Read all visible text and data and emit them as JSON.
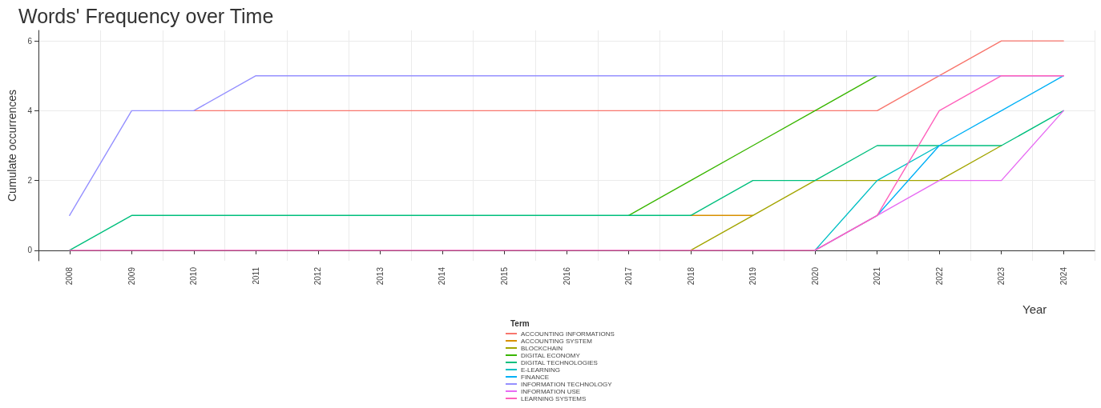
{
  "chart_data": {
    "type": "line",
    "title": "Words' Frequency over Time",
    "xlabel": "Year",
    "ylabel": "Cumulate occurrences",
    "legend_title": "Term",
    "categories": [
      "2008",
      "2009",
      "2010",
      "2011",
      "2012",
      "2013",
      "2014",
      "2015",
      "2016",
      "2017",
      "2018",
      "2019",
      "2020",
      "2021",
      "2022",
      "2023",
      "2024"
    ],
    "ylim": [
      -0.3,
      6.3
    ],
    "yticks": [
      0,
      2,
      4,
      6
    ],
    "grid": true,
    "legend": "bottom",
    "marker": "none",
    "line_style": "solid",
    "series": [
      {
        "name": "ACCOUNTING INFORMATIONS",
        "color": "#f8766d",
        "values": [
          null,
          null,
          4,
          4,
          4,
          4,
          4,
          4,
          4,
          4,
          4,
          4,
          4,
          4,
          5,
          6,
          6
        ]
      },
      {
        "name": "ACCOUNTING SYSTEM",
        "color": "#d89000",
        "values": [
          null,
          null,
          null,
          null,
          null,
          null,
          null,
          null,
          null,
          null,
          1,
          1,
          null,
          null,
          null,
          null,
          null
        ]
      },
      {
        "name": "BLOCKCHAIN",
        "color": "#a3a500",
        "values": [
          null,
          null,
          null,
          null,
          null,
          null,
          null,
          null,
          null,
          null,
          0,
          1,
          2,
          2,
          2,
          3,
          null
        ]
      },
      {
        "name": "DIGITAL ECONOMY",
        "color": "#39b600",
        "values": [
          null,
          null,
          null,
          null,
          null,
          null,
          null,
          null,
          null,
          1,
          2,
          3,
          4,
          5,
          null,
          null,
          null
        ]
      },
      {
        "name": "DIGITAL TECHNOLOGIES",
        "color": "#00bf7d",
        "values": [
          0,
          1,
          1,
          1,
          1,
          1,
          1,
          1,
          1,
          1,
          1,
          2,
          2,
          3,
          3,
          3,
          4
        ]
      },
      {
        "name": "E-LEARNING",
        "color": "#00bfc4",
        "values": [
          null,
          null,
          null,
          null,
          null,
          null,
          null,
          null,
          null,
          null,
          null,
          null,
          0,
          2,
          3,
          null,
          null
        ]
      },
      {
        "name": "FINANCE",
        "color": "#00b0f6",
        "values": [
          null,
          null,
          null,
          null,
          null,
          null,
          null,
          null,
          null,
          null,
          null,
          null,
          0,
          1,
          3,
          4,
          5
        ]
      },
      {
        "name": "INFORMATION TECHNOLOGY",
        "color": "#9590ff",
        "values": [
          1,
          4,
          4,
          5,
          5,
          5,
          5,
          5,
          5,
          5,
          5,
          5,
          5,
          5,
          5,
          5,
          5
        ]
      },
      {
        "name": "INFORMATION USE",
        "color": "#e76bf3",
        "values": [
          null,
          null,
          null,
          null,
          null,
          null,
          null,
          null,
          null,
          null,
          null,
          null,
          0,
          1,
          2,
          2,
          4
        ]
      },
      {
        "name": "LEARNING SYSTEMS",
        "color": "#ff62bc",
        "values": [
          0,
          0,
          0,
          0,
          0,
          0,
          0,
          0,
          0,
          0,
          0,
          0,
          0,
          1,
          4,
          5,
          5
        ]
      }
    ]
  }
}
